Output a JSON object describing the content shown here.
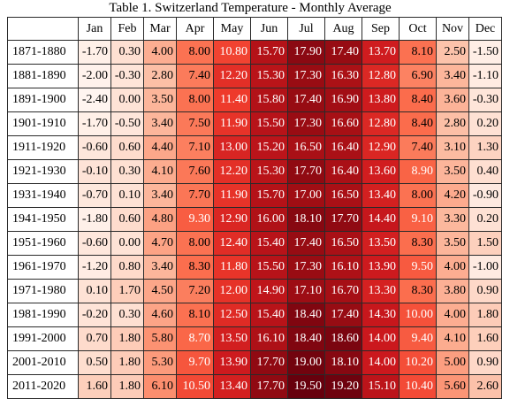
{
  "caption": "Table 1. Switzerland Temperature - Monthly Average",
  "table": {
    "columns": [
      "Jan",
      "Feb",
      "Mar",
      "Apr",
      "May",
      "Jun",
      "Jul",
      "Aug",
      "Sep",
      "Oct",
      "Nov",
      "Dec"
    ],
    "rows": [
      {
        "period": "1871-1880",
        "values": [
          "-1.70",
          "0.30",
          "4.00",
          "8.00",
          "10.80",
          "15.70",
          "17.90",
          "17.40",
          "13.70",
          "8.10",
          "2.50",
          "-1.50"
        ]
      },
      {
        "period": "1881-1890",
        "values": [
          "-2.00",
          "-0.30",
          "2.80",
          "7.40",
          "12.20",
          "15.30",
          "17.30",
          "16.30",
          "12.80",
          "6.90",
          "3.40",
          "-1.10"
        ]
      },
      {
        "period": "1891-1900",
        "values": [
          "-2.40",
          "0.00",
          "3.50",
          "8.00",
          "11.40",
          "15.80",
          "17.40",
          "16.90",
          "13.80",
          "8.40",
          "3.60",
          "-0.30"
        ]
      },
      {
        "period": "1901-1910",
        "values": [
          "-1.70",
          "-0.50",
          "3.40",
          "7.50",
          "11.90",
          "15.50",
          "17.30",
          "16.60",
          "12.80",
          "8.40",
          "2.80",
          "0.20"
        ]
      },
      {
        "period": "1911-1920",
        "values": [
          "-0.60",
          "0.60",
          "4.40",
          "7.10",
          "13.00",
          "15.20",
          "16.50",
          "16.40",
          "12.90",
          "7.40",
          "3.10",
          "1.30"
        ]
      },
      {
        "period": "1921-1930",
        "values": [
          "-0.10",
          "0.30",
          "4.10",
          "7.60",
          "12.20",
          "15.30",
          "17.70",
          "16.40",
          "13.60",
          "8.90",
          "3.50",
          "0.40"
        ]
      },
      {
        "period": "1931-1940",
        "values": [
          "-0.70",
          "0.10",
          "3.40",
          "7.70",
          "11.90",
          "15.70",
          "17.00",
          "16.50",
          "13.40",
          "8.00",
          "4.20",
          "-0.90"
        ]
      },
      {
        "period": "1941-1950",
        "values": [
          "-1.80",
          "0.60",
          "4.80",
          "9.30",
          "12.90",
          "16.00",
          "18.10",
          "17.70",
          "14.40",
          "9.10",
          "3.30",
          "0.20"
        ]
      },
      {
        "period": "1951-1960",
        "values": [
          "-0.60",
          "0.00",
          "4.70",
          "8.00",
          "12.40",
          "15.40",
          "17.40",
          "16.50",
          "13.50",
          "8.30",
          "3.50",
          "1.50"
        ]
      },
      {
        "period": "1961-1970",
        "values": [
          "-1.20",
          "0.80",
          "3.40",
          "8.30",
          "11.80",
          "15.50",
          "17.30",
          "16.10",
          "13.90",
          "9.50",
          "4.00",
          "-1.00"
        ]
      },
      {
        "period": "1971-1980",
        "values": [
          "0.10",
          "1.70",
          "4.50",
          "7.20",
          "12.00",
          "14.90",
          "17.10",
          "16.70",
          "13.30",
          "8.30",
          "3.80",
          "0.90"
        ]
      },
      {
        "period": "1981-1990",
        "values": [
          "-0.20",
          "0.30",
          "4.60",
          "8.10",
          "12.50",
          "15.40",
          "18.40",
          "17.40",
          "14.30",
          "10.00",
          "4.00",
          "1.80"
        ]
      },
      {
        "period": "1991-2000",
        "values": [
          "0.70",
          "1.80",
          "5.80",
          "8.70",
          "13.50",
          "16.10",
          "18.40",
          "18.60",
          "14.00",
          "9.40",
          "4.10",
          "1.60"
        ]
      },
      {
        "period": "2001-2010",
        "values": [
          "0.50",
          "1.80",
          "5.30",
          "9.70",
          "13.90",
          "17.70",
          "19.00",
          "18.10",
          "14.00",
          "10.20",
          "5.00",
          "0.90"
        ]
      },
      {
        "period": "2011-2020",
        "values": [
          "1.60",
          "1.80",
          "6.10",
          "10.50",
          "13.40",
          "17.70",
          "19.50",
          "19.20",
          "15.10",
          "10.40",
          "5.60",
          "2.60"
        ]
      }
    ]
  },
  "color_scale": {
    "low": "#fff5f0",
    "mid": "#fb6a4a",
    "high": "#67000d",
    "text_dark": "#000000",
    "text_light": "#ffffff"
  }
}
